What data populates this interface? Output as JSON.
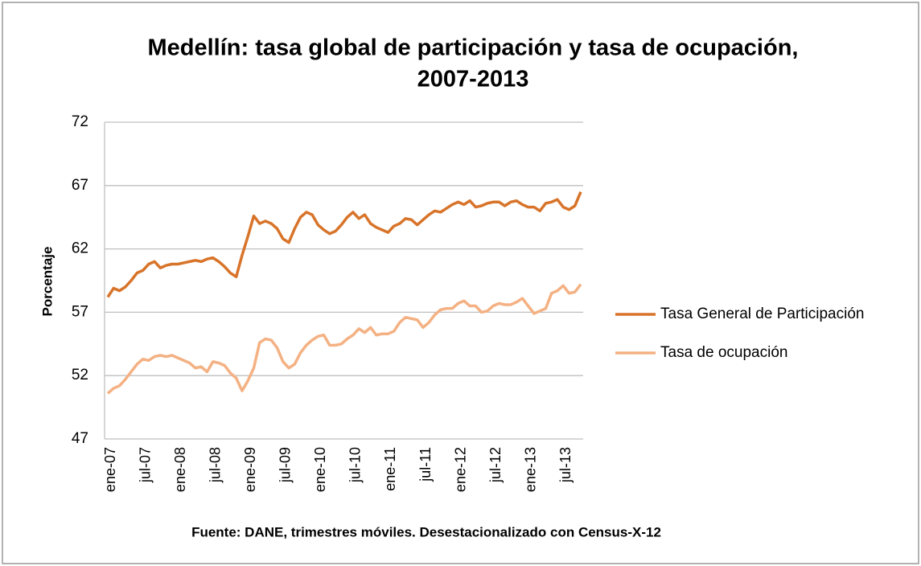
{
  "chart_data": {
    "type": "line",
    "title": [
      "Medellín: tasa global de participación y tasa de ocupación,",
      "2007-2013"
    ],
    "y_label": "Porcentaje",
    "source": "Fuente: DANE, trimestres móviles. Desestacionalizado  con Census-X-12",
    "categories": [
      "ene-07",
      null,
      null,
      null,
      null,
      null,
      "jul-07",
      null,
      null,
      null,
      null,
      null,
      "ene-08",
      null,
      null,
      null,
      null,
      null,
      "jul-08",
      null,
      null,
      null,
      null,
      null,
      "ene-09",
      null,
      null,
      null,
      null,
      null,
      "jul-09",
      null,
      null,
      null,
      null,
      null,
      "ene-10",
      null,
      null,
      null,
      null,
      null,
      "jul-10",
      null,
      null,
      null,
      null,
      null,
      "ene-11",
      null,
      null,
      null,
      null,
      null,
      "jul-11",
      null,
      null,
      null,
      null,
      null,
      "ene-12",
      null,
      null,
      null,
      null,
      null,
      "jul-12",
      null,
      null,
      null,
      null,
      null,
      "ene-13",
      null,
      null,
      null,
      null,
      null,
      "jul-13",
      null,
      null,
      null
    ],
    "series": [
      {
        "name": "Tasa General de Participación",
        "color": "#d8742a",
        "values": [
          58.2,
          58.9,
          58.7,
          59.0,
          59.5,
          60.1,
          60.3,
          60.8,
          61.0,
          60.5,
          60.7,
          60.8,
          60.8,
          60.9,
          61.0,
          61.1,
          61.0,
          61.2,
          61.3,
          61.0,
          60.6,
          60.1,
          59.8,
          61.5,
          63.0,
          64.6,
          64.0,
          64.2,
          64.0,
          63.6,
          62.8,
          62.5,
          63.6,
          64.5,
          64.9,
          64.7,
          63.9,
          63.5,
          63.2,
          63.4,
          63.9,
          64.5,
          64.9,
          64.4,
          64.7,
          64.0,
          63.7,
          63.5,
          63.3,
          63.8,
          64.0,
          64.4,
          64.3,
          63.9,
          64.3,
          64.7,
          65.0,
          64.9,
          65.2,
          65.5,
          65.7,
          65.5,
          65.8,
          65.3,
          65.4,
          65.6,
          65.7,
          65.7,
          65.4,
          65.7,
          65.8,
          65.5,
          65.3,
          65.3,
          65.0,
          65.6,
          65.7,
          65.9,
          65.3,
          65.1,
          65.4,
          66.5
        ]
      },
      {
        "name": "Tasa de ocupación",
        "color": "#f4b183",
        "values": [
          50.6,
          51.0,
          51.2,
          51.7,
          52.3,
          52.9,
          53.3,
          53.2,
          53.5,
          53.6,
          53.5,
          53.6,
          53.4,
          53.2,
          53.0,
          52.6,
          52.7,
          52.3,
          53.1,
          53.0,
          52.8,
          52.2,
          51.8,
          50.8,
          51.6,
          52.6,
          54.6,
          54.9,
          54.8,
          54.2,
          53.1,
          52.6,
          52.9,
          53.8,
          54.4,
          54.8,
          55.1,
          55.2,
          54.4,
          54.4,
          54.5,
          54.9,
          55.2,
          55.7,
          55.4,
          55.8,
          55.2,
          55.3,
          55.3,
          55.5,
          56.2,
          56.6,
          56.5,
          56.4,
          55.8,
          56.2,
          56.8,
          57.2,
          57.3,
          57.3,
          57.7,
          57.9,
          57.5,
          57.5,
          57.0,
          57.1,
          57.5,
          57.7,
          57.6,
          57.6,
          57.8,
          58.1,
          57.5,
          56.9,
          57.1,
          57.3,
          58.5,
          58.7,
          59.1,
          58.5,
          58.6,
          59.2
        ]
      }
    ],
    "ylim": [
      47,
      72
    ],
    "yticks": [
      47,
      52,
      57,
      62,
      67,
      72
    ],
    "grid": true,
    "legend": "right"
  }
}
